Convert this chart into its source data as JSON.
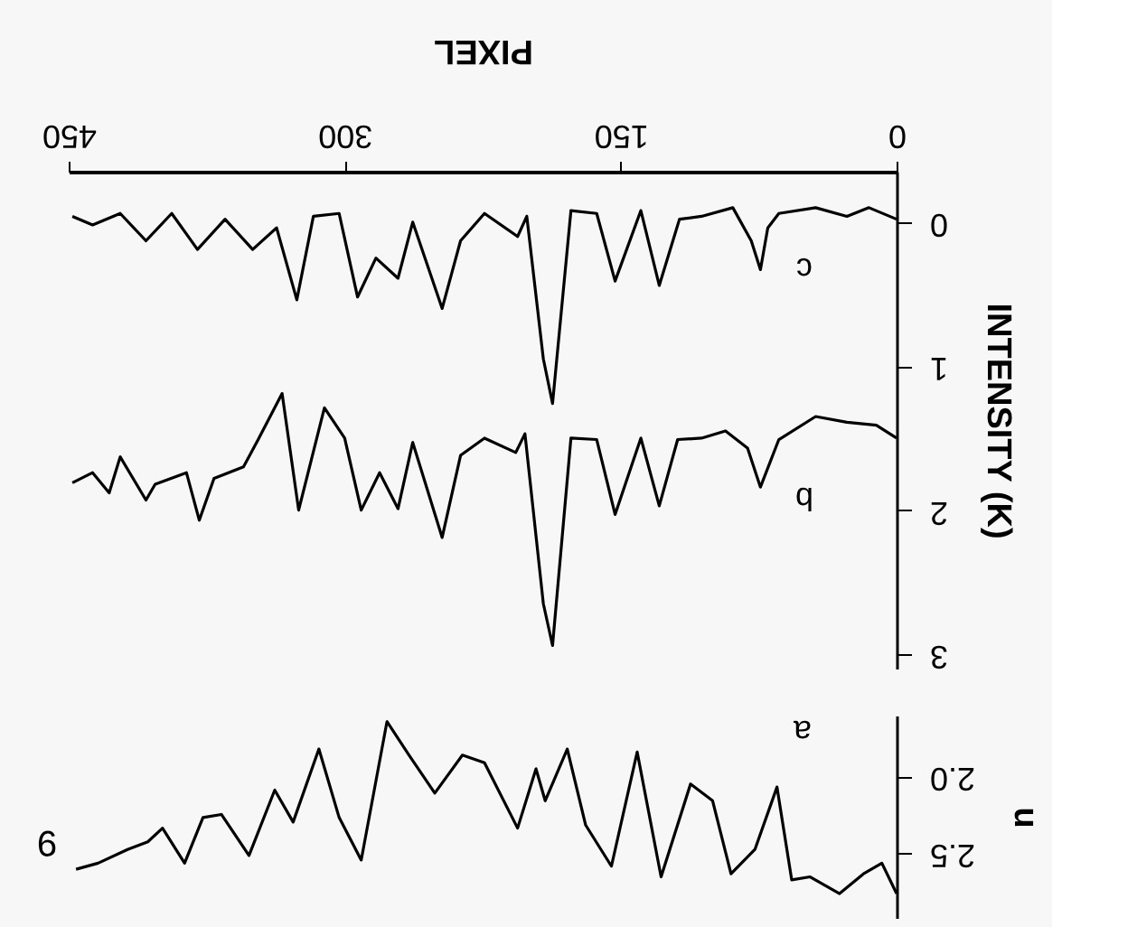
{
  "chart_data": [
    {
      "type": "line",
      "xlabel": "PIXEL",
      "ylabel": "INTENSITY (K)",
      "xlim": [
        450,
        0
      ],
      "xticks": [
        450,
        300,
        150,
        0
      ],
      "ylim": [
        3.1,
        -0.35
      ],
      "yticks": [
        0,
        1,
        2,
        3
      ],
      "grid": false,
      "line_style": "solid",
      "marker": "none",
      "series": [
        {
          "name": "c",
          "color": "#000000",
          "x": [
            0,
            15,
            27,
            44,
            64,
            70,
            74,
            79,
            89,
            106,
            118,
            129,
            139,
            153,
            163,
            177,
            187,
            192,
            201,
            206,
            224,
            237,
            247,
            263,
            271,
            283,
            293,
            303,
            317,
            326,
            337,
            350,
            365,
            380,
            394,
            408,
            422,
            437,
            448
          ],
          "values": [
            -0.02,
            -0.1,
            -0.04,
            -0.1,
            -0.06,
            0.04,
            0.33,
            0.13,
            -0.1,
            -0.04,
            -0.02,
            0.44,
            -0.08,
            0.41,
            -0.06,
            -0.08,
            1.26,
            0.95,
            -0.04,
            0.1,
            -0.06,
            0.13,
            0.6,
            0.0,
            0.39,
            0.25,
            0.52,
            -0.06,
            -0.04,
            0.54,
            0.04,
            0.19,
            -0.02,
            0.19,
            -0.06,
            0.13,
            -0.06,
            0.02,
            -0.04
          ]
        },
        {
          "name": "b",
          "color": "#000000",
          "x": [
            0,
            11,
            27,
            44,
            64,
            74,
            81,
            93,
            106,
            119,
            129,
            139,
            153,
            163,
            177,
            187,
            192,
            202,
            207,
            224,
            237,
            247,
            263,
            271,
            281,
            291,
            300,
            311,
            325,
            334,
            347,
            355,
            371,
            379,
            386,
            403,
            408,
            422,
            428,
            437,
            448
          ],
          "values": [
            1.5,
            1.41,
            1.39,
            1.35,
            1.51,
            1.84,
            1.57,
            1.45,
            1.5,
            1.51,
            1.97,
            1.5,
            2.03,
            1.51,
            1.5,
            2.94,
            2.65,
            1.47,
            1.6,
            1.5,
            1.62,
            2.19,
            1.53,
            1.99,
            1.74,
            2.0,
            1.5,
            1.29,
            2.0,
            1.19,
            1.51,
            1.7,
            1.78,
            2.07,
            1.74,
            1.82,
            1.93,
            1.63,
            1.88,
            1.74,
            1.81
          ]
        }
      ]
    },
    {
      "type": "line",
      "ylabel": "u",
      "xlim": [
        450,
        0
      ],
      "ylim": [
        2.93,
        1.6
      ],
      "yticks": [
        {
          "value": 2,
          "label": "2.0"
        },
        {
          "value": 2.5,
          "label": "2.5"
        }
      ],
      "tick_labels": "y",
      "grid": false,
      "line_style": "solid",
      "marker": "none",
      "annotations": [
        "9"
      ],
      "series": [
        {
          "name": "a",
          "color": "#000000",
          "x": [
            0,
            8,
            18,
            31,
            47,
            57,
            65,
            77,
            90,
            100,
            112,
            128,
            141,
            155,
            169,
            179,
            191,
            196,
            206,
            224,
            236,
            251,
            265,
            277,
            291,
            303,
            314,
            328,
            338,
            352,
            367,
            377,
            387,
            399,
            407,
            418,
            434,
            446
          ],
          "values": [
            2.77,
            2.57,
            2.64,
            2.77,
            2.66,
            2.68,
            2.07,
            2.48,
            2.64,
            2.16,
            2.05,
            2.66,
            1.84,
            2.59,
            2.32,
            1.82,
            2.16,
            1.95,
            2.34,
            1.91,
            1.86,
            2.11,
            1.86,
            1.64,
            2.55,
            2.27,
            1.82,
            2.3,
            2.09,
            2.52,
            2.25,
            2.27,
            2.57,
            2.34,
            2.43,
            2.48,
            2.57,
            2.61
          ]
        }
      ]
    }
  ]
}
